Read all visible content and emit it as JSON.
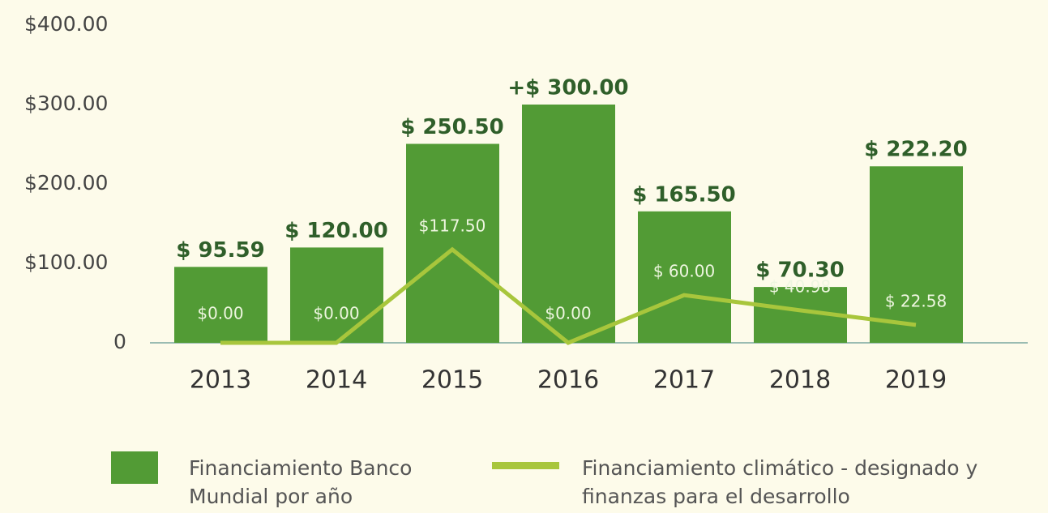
{
  "chart_data": {
    "type": "bar",
    "categories": [
      "2013",
      "2014",
      "2015",
      "2016",
      "2017",
      "2018",
      "2019"
    ],
    "ylim": [
      0,
      400
    ],
    "yticks": [
      0,
      {
        "value": 100,
        "label": "$100.00"
      },
      {
        "value": 200,
        "label": "$200.00"
      },
      {
        "value": 300,
        "label": "$300.00"
      },
      {
        "value": 400,
        "label": "$400.00"
      }
    ],
    "series": [
      {
        "name": "Financiamiento Banco Mundial por año",
        "type": "bar",
        "color": "#529b35",
        "values": [
          95.59,
          120,
          250.5,
          300,
          165.5,
          70.3,
          222.2
        ],
        "value_labels": [
          "$ 95.59",
          "$ 120.00",
          "$ 250.50",
          "+$ 300.00",
          "$ 165.50",
          "$ 70.30",
          "$ 222.20"
        ]
      },
      {
        "name": "Financiamiento climático - designado y finanzas para el desarrollo",
        "type": "line",
        "color": "#a8c63c",
        "values": [
          0,
          0,
          117.5,
          0,
          60,
          40.98,
          22.58
        ],
        "value_labels": [
          "$0.00",
          "$0.00",
          "$117.50",
          "$0.00",
          "$ 60.00",
          "$ 40.98",
          "$ 22.58"
        ]
      }
    ]
  }
}
